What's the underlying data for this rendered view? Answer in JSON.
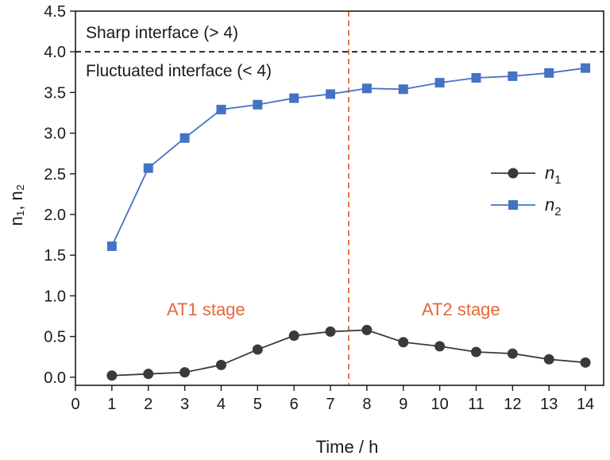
{
  "chart_data": {
    "type": "line",
    "xlabel": "Time / h",
    "ylabel": "n₁, n₂",
    "xlim": [
      0,
      14.5
    ],
    "ylim": [
      -0.1,
      4.5
    ],
    "x_ticks": [
      0,
      1,
      2,
      3,
      4,
      5,
      6,
      7,
      8,
      9,
      10,
      11,
      12,
      13,
      14
    ],
    "y_ticks": [
      "0.0",
      "0.5",
      "1.0",
      "1.5",
      "2.0",
      "2.5",
      "3.0",
      "3.5",
      "4.0",
      "4.5"
    ],
    "x": [
      1,
      2,
      3,
      4,
      5,
      6,
      7,
      8,
      9,
      10,
      11,
      12,
      13,
      14
    ],
    "series": [
      {
        "name": "n",
        "subscript": "1",
        "color": "#3a3a3a",
        "marker": "circle",
        "values": [
          0.02,
          0.04,
          0.06,
          0.15,
          0.34,
          0.51,
          0.56,
          0.58,
          0.43,
          0.38,
          0.31,
          0.29,
          0.22,
          0.18
        ]
      },
      {
        "name": "n",
        "subscript": "2",
        "color": "#4472c4",
        "marker": "square",
        "values": [
          1.61,
          2.57,
          2.94,
          3.29,
          3.35,
          3.43,
          3.48,
          3.55,
          3.54,
          3.62,
          3.68,
          3.7,
          3.74,
          3.8
        ]
      }
    ],
    "reference_lines": {
      "threshold": {
        "axis": "y",
        "value": 4.0,
        "color": "#000000",
        "style": "dashed"
      },
      "stage_divider": {
        "axis": "x",
        "value": 7.5,
        "color": "#e2693b",
        "style": "dashed"
      }
    },
    "annotations": {
      "sharp": "Sharp interface (> 4)",
      "fluctuated": "Fluctuated interface (< 4)",
      "at1": "AT1 stage",
      "at2": "AT2 stage"
    },
    "legend_position": "center-right",
    "grid": false
  }
}
